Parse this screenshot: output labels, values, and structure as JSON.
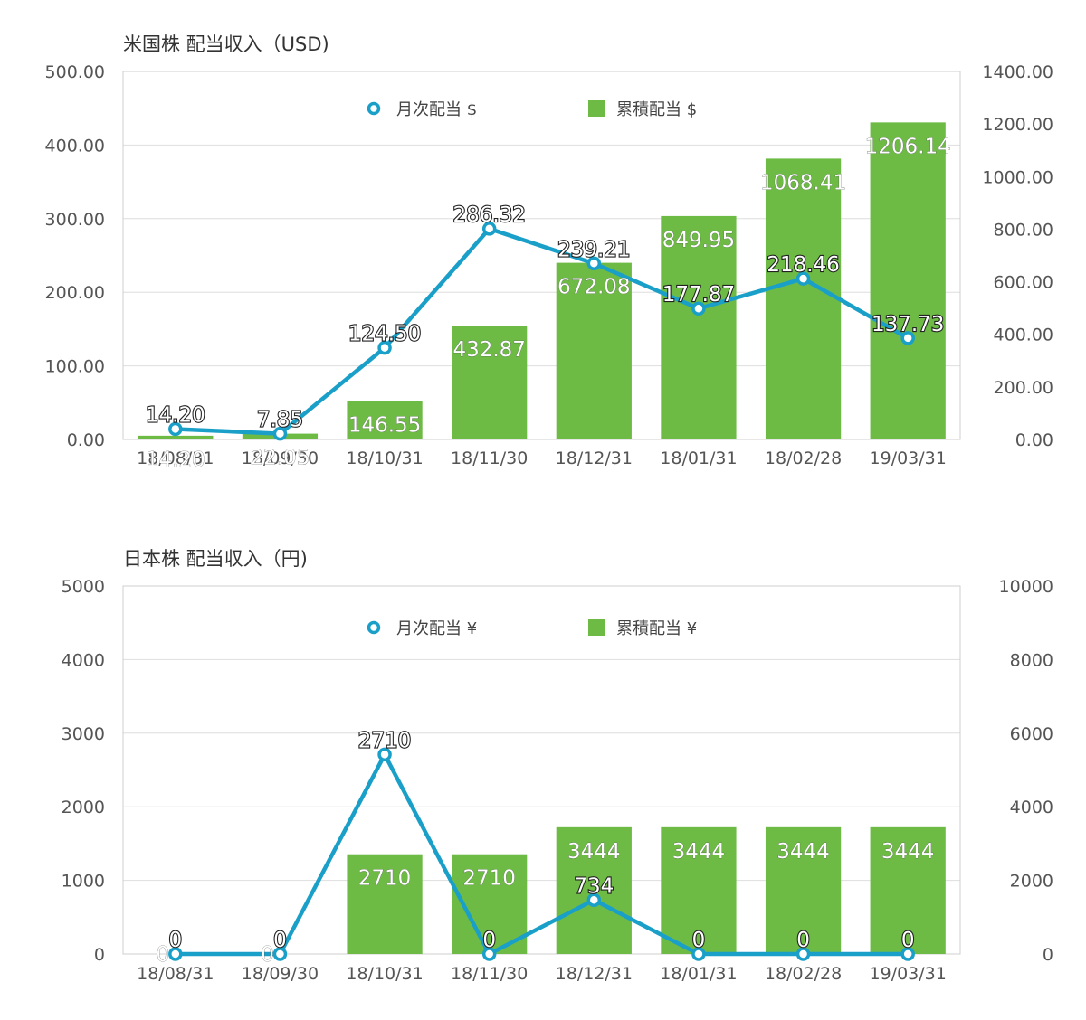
{
  "chart_data": [
    {
      "type": "bar+line",
      "title": "米国株 配当収入（USD)",
      "categories": [
        "18/08/31",
        "18/09/30",
        "18/10/31",
        "18/11/30",
        "18/12/31",
        "18/01/31",
        "18/02/28",
        "19/03/31"
      ],
      "left_axis": {
        "ticks": [
          "0.00",
          "100.00",
          "200.00",
          "300.00",
          "400.00",
          "500.00"
        ],
        "ylim": [
          0,
          500
        ]
      },
      "right_axis": {
        "ticks": [
          "0.00",
          "200.00",
          "400.00",
          "600.00",
          "800.00",
          "1000.00",
          "1200.00",
          "1400.00"
        ],
        "ylim": [
          0,
          1400
        ]
      },
      "legend_placement": "top-center",
      "grid": true,
      "series": [
        {
          "name": "月次配当 $",
          "type": "line",
          "axis": "left",
          "color": "#1aa0c8",
          "values": [
            14.2,
            7.85,
            124.5,
            286.32,
            239.21,
            177.87,
            218.46,
            137.73
          ],
          "labels": [
            "14.20",
            "7.85",
            "124.50",
            "286.32",
            "239.21",
            "177.87",
            "218.46",
            "137.73"
          ]
        },
        {
          "name": "累積配当 $",
          "type": "bar",
          "axis": "right",
          "color": "#6dbb45",
          "values": [
            14.2,
            22.05,
            146.55,
            432.87,
            672.08,
            849.95,
            1068.41,
            1206.14
          ],
          "labels": [
            "14.20",
            "22.05",
            "146.55",
            "432.87",
            "672.08",
            "849.95",
            "1068.41",
            "1206.14"
          ]
        }
      ]
    },
    {
      "type": "bar+line",
      "title": "日本株 配当収入（円)",
      "categories": [
        "18/08/31",
        "18/09/30",
        "18/10/31",
        "18/11/30",
        "18/12/31",
        "18/01/31",
        "18/02/28",
        "19/03/31"
      ],
      "left_axis": {
        "ticks": [
          "0",
          "1000",
          "2000",
          "3000",
          "4000",
          "5000"
        ],
        "ylim": [
          0,
          5000
        ]
      },
      "right_axis": {
        "ticks": [
          "0",
          "2000",
          "4000",
          "6000",
          "8000",
          "10000"
        ],
        "ylim": [
          0,
          10000
        ]
      },
      "legend_placement": "top-center",
      "grid": true,
      "series": [
        {
          "name": "月次配当 ¥",
          "type": "line",
          "axis": "left",
          "color": "#1aa0c8",
          "values": [
            0,
            0,
            2710,
            0,
            734,
            0,
            0,
            0
          ],
          "labels": [
            "0",
            "0",
            "2710",
            "0",
            "734",
            "0",
            "0",
            "0"
          ]
        },
        {
          "name": "累積配当 ¥",
          "type": "bar",
          "axis": "right",
          "color": "#6dbb45",
          "values": [
            0,
            0,
            2710,
            2710,
            3444,
            3444,
            3444,
            3444
          ],
          "labels": [
            "0",
            "0",
            "2710",
            "2710",
            "3444",
            "3444",
            "3444",
            "3444"
          ]
        }
      ]
    }
  ]
}
